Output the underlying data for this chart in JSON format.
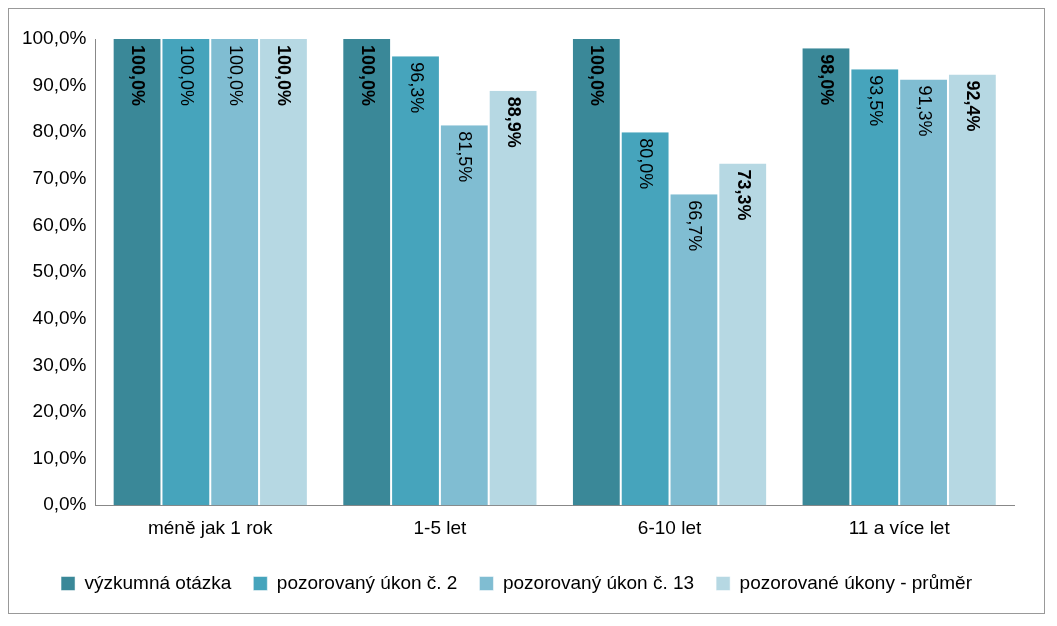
{
  "chart_data": {
    "type": "bar",
    "categories": [
      "méně jak 1 rok",
      "1-5 let",
      "6-10 let",
      "11 a více let"
    ],
    "series": [
      {
        "name": "výzkumná otázka",
        "color": "#3a8898",
        "values": [
          100,
          100,
          100,
          98.0
        ],
        "value_labels": [
          "100,0%",
          "100,0%",
          "100,0%",
          "98,0%"
        ]
      },
      {
        "name": "pozorovaný úkon č. 2",
        "color": "#46a4bc",
        "values": [
          100,
          96.3,
          80.0,
          93.5
        ],
        "value_labels": [
          "100,0%",
          "96,3%",
          "80,0%",
          "93,5%"
        ]
      },
      {
        "name": "pozorovaný úkon č. 13",
        "color": "#80bdd2",
        "values": [
          100,
          81.5,
          66.7,
          91.3
        ],
        "value_labels": [
          "100,0%",
          "81,5%",
          "66,7%",
          "91,3%"
        ]
      },
      {
        "name": "pozorované úkony - průměr",
        "color": "#b6d8e3",
        "values": [
          100,
          88.9,
          73.3,
          92.4
        ],
        "value_labels": [
          "100,0%",
          "88,9%",
          "73,3%",
          "92,4%"
        ]
      }
    ],
    "ylim": [
      0,
      100
    ],
    "yticks": [
      {
        "value": 0,
        "label": "0,0%"
      },
      {
        "value": 10,
        "label": "10,0%"
      },
      {
        "value": 20,
        "label": "20,0%"
      },
      {
        "value": 30,
        "label": "30,0%"
      },
      {
        "value": 40,
        "label": "40,0%"
      },
      {
        "value": 50,
        "label": "50,0%"
      },
      {
        "value": 60,
        "label": "60,0%"
      },
      {
        "value": 70,
        "label": "70,0%"
      },
      {
        "value": 80,
        "label": "80,0%"
      },
      {
        "value": 90,
        "label": "90,0%"
      },
      {
        "value": 100,
        "label": "100,0%"
      }
    ],
    "grid": false,
    "legend": "bottom"
  }
}
